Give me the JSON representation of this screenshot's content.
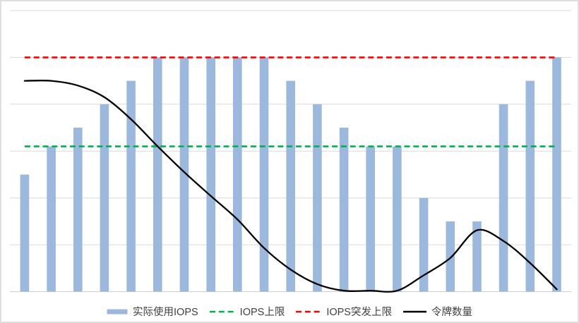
{
  "chart_data": {
    "type": "combo",
    "title": "",
    "x_axis": {
      "labels_visible": false,
      "categories_count": 21
    },
    "y_axis": {
      "min": 0,
      "max": 6000,
      "gridline_step": 1000,
      "labels_visible": false,
      "grid": true
    },
    "bar_series": {
      "name": "实际使用IOPS",
      "color": "#9CB8DC",
      "values": [
        2500,
        3100,
        3500,
        4000,
        4500,
        5000,
        5000,
        5000,
        5000,
        5000,
        4500,
        4000,
        3500,
        3100,
        3100,
        2000,
        1500,
        1500,
        4000,
        4500,
        5000
      ]
    },
    "limit_lines": [
      {
        "name": "IOPS上限",
        "style": "dashed",
        "color": "#00B050",
        "value": 3100
      },
      {
        "name": "IOPS突发上限",
        "style": "dashed",
        "color": "#FF0000",
        "value": 5000
      }
    ],
    "line_series": {
      "name": "令牌数量",
      "color": "#000000",
      "smooth": true,
      "values": [
        4500,
        4500,
        4400,
        4150,
        3680,
        3100,
        2550,
        2040,
        1540,
        930,
        470,
        160,
        20,
        20,
        20,
        350,
        720,
        1310,
        1080,
        610,
        50
      ]
    },
    "legend": {
      "position": "bottom"
    },
    "gridline_color": "#D9D9D9",
    "baseline_color": "#CFCFCF",
    "background_color": "#FFFFFF",
    "frame_border_color": "#DEDEDE",
    "legend_text_color": "#404040"
  }
}
